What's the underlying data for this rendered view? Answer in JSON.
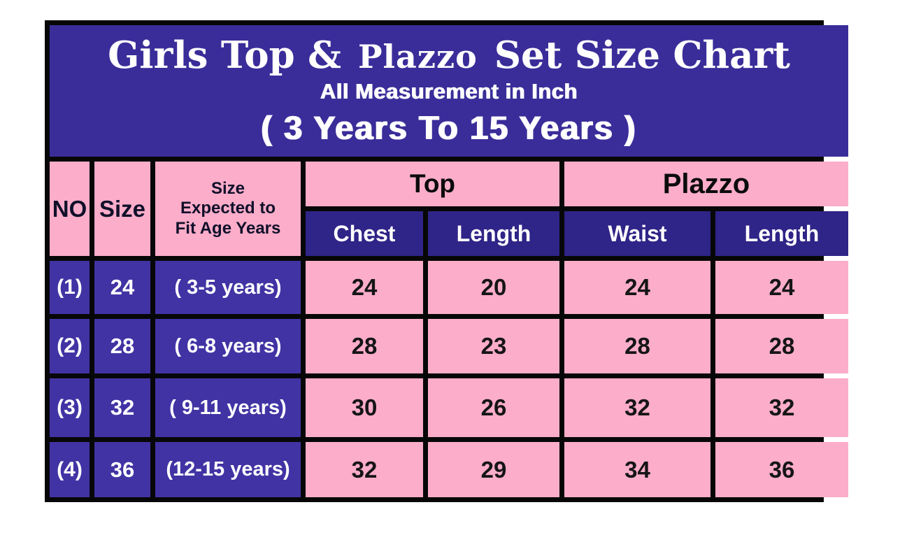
{
  "banner": {
    "title_part1": "Girls Top &",
    "title_part2": "Plazzo",
    "title_part3": "Set Size Chart",
    "subtitle": "All Measurement in Inch",
    "age_range": "( 3 Years To 15 Years )"
  },
  "table": {
    "headers": {
      "no": "NO",
      "size": "Size",
      "age_lines": [
        "Size",
        "Expected to",
        "Fit Age Years"
      ],
      "group_top": "Top",
      "group_plazzo": "Plazzo",
      "sub": [
        "Chest",
        "Length",
        "Waist",
        "Length"
      ]
    },
    "rows": [
      {
        "no": "(1)",
        "size": "24",
        "age": "( 3-5 years)",
        "chest": "24",
        "top_length": "20",
        "waist": "24",
        "plazzo_length": "24"
      },
      {
        "no": "(2)",
        "size": "28",
        "age": "( 6-8 years)",
        "chest": "28",
        "top_length": "23",
        "waist": "28",
        "plazzo_length": "28"
      },
      {
        "no": "(3)",
        "size": "32",
        "age": "( 9-11 years)",
        "chest": "30",
        "top_length": "26",
        "waist": "32",
        "plazzo_length": "32"
      },
      {
        "no": "(4)",
        "size": "36",
        "age": "(12-15 years)",
        "chest": "32",
        "top_length": "29",
        "waist": "34",
        "plazzo_length": "36"
      }
    ]
  },
  "colors": {
    "banner_navy": "#3a2d99",
    "subheader_navy": "#2f2487",
    "data_navy": "#4133a4",
    "pink": "#fbadc9",
    "border_black": "#070707",
    "text_light": "#ffffff",
    "text_dark": "#141414"
  },
  "chart_data": {
    "type": "table",
    "title": "Girls Top & Plazzo Set Size Chart",
    "subtitle": "All Measurement in Inch",
    "range_note": "( 3 Years To 15 Years )",
    "units": "inch",
    "columns": [
      "NO",
      "Size",
      "Size Expected to Fit Age Years",
      "Top Chest",
      "Top Length",
      "Plazzo Waist",
      "Plazzo Length"
    ],
    "rows": [
      [
        "(1)",
        24,
        "( 3-5 years)",
        24,
        20,
        24,
        24
      ],
      [
        "(2)",
        28,
        "( 6-8 years)",
        28,
        23,
        28,
        28
      ],
      [
        "(3)",
        32,
        "( 9-11 years)",
        30,
        26,
        32,
        32
      ],
      [
        "(4)",
        36,
        "(12-15 years)",
        32,
        29,
        34,
        36
      ]
    ]
  }
}
